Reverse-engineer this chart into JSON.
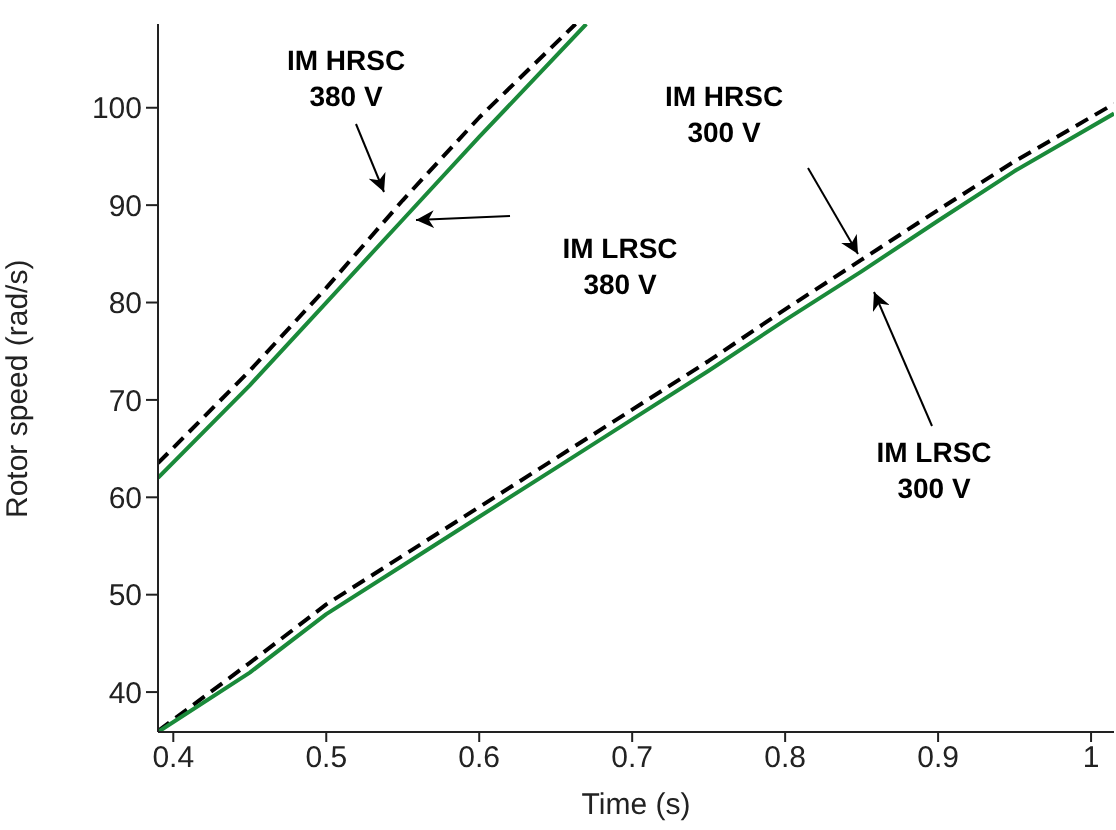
{
  "chart_data": {
    "type": "line",
    "xlabel": "Time (s)",
    "ylabel": "Rotor speed (rad/s)",
    "xlim": [
      0.39,
      1.015
    ],
    "xticks": [
      0.4,
      0.5,
      0.6,
      0.7,
      0.8,
      0.9,
      1
    ],
    "ylim": [
      35.9,
      108.6
    ],
    "yticks": [
      40,
      50,
      60,
      70,
      80,
      90,
      100
    ],
    "grid": false,
    "marker": "none",
    "series": [
      {
        "color": "#000000",
        "line_style": "dashed",
        "x": [
          0.39,
          0.45,
          0.5,
          0.55,
          0.6,
          0.663
        ],
        "values": [
          63.5,
          73,
          81.5,
          90.5,
          99,
          108.6
        ]
      },
      {
        "color": "#1a8a3a",
        "line_style": "solid",
        "x": [
          0.39,
          0.45,
          0.5,
          0.55,
          0.6,
          0.67
        ],
        "values": [
          62,
          71.5,
          80,
          88.5,
          97,
          108.6
        ]
      },
      {
        "color": "#000000",
        "line_style": "dashed",
        "x": [
          0.39,
          0.45,
          0.5,
          0.55,
          0.6,
          0.65,
          0.7,
          0.75,
          0.8,
          0.85,
          0.9,
          0.95,
          1.015
        ],
        "values": [
          36,
          43,
          49,
          54,
          59,
          64,
          69,
          74,
          79.3,
          84.4,
          89.5,
          94.5,
          100.4
        ]
      },
      {
        "color": "#1a8a3a",
        "line_style": "solid",
        "x": [
          0.39,
          0.45,
          0.5,
          0.55,
          0.6,
          0.65,
          0.7,
          0.75,
          0.8,
          0.85,
          0.9,
          0.95,
          1.015
        ],
        "values": [
          35.9,
          42,
          48,
          53,
          58,
          63,
          68,
          73,
          78.2,
          83.2,
          88.4,
          93.5,
          99.4
        ]
      }
    ],
    "annotations": [
      "IM HRSC\n380 V",
      "IM LRSC\n380 V",
      "IM HRSC\n300 V",
      "IM LRSC\n300 V"
    ]
  }
}
